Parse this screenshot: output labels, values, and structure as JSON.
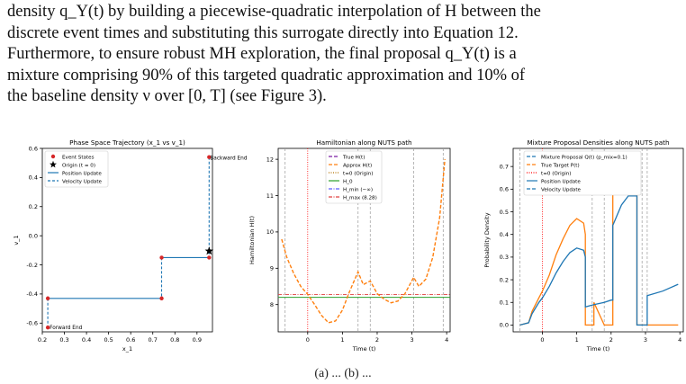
{
  "paragraph": {
    "lines": [
      "density q_Y(t) by building a piecewise-quadratic interpolation of H between the",
      "discrete event times and substituting this surrogate directly into Equation 12.",
      "Furthermore, to ensure robust MH exploration, the final proposal q_Y(t) is a",
      "mixture comprising 90% of this targeted quadratic approximation and 10% of",
      "the baseline density ν over [0, T] (see Figure 3)."
    ]
  },
  "figure_caption": "(a) ... (b) ...",
  "chart_data": [
    {
      "type": "line",
      "title": "Phase Space Trajectory (x_1 vs v_1)",
      "xlabel": "x_1",
      "ylabel": "v_1",
      "xlim": [
        0.2,
        0.97
      ],
      "ylim": [
        -0.66,
        0.6
      ],
      "xticks": [
        "0.2",
        "0.3",
        "0.4",
        "0.5",
        "0.6",
        "0.7",
        "0.8",
        "0.9"
      ],
      "yticks": [
        "-0.6",
        "-0.4",
        "-0.2",
        "0.0",
        "0.2",
        "0.4",
        "0.6"
      ],
      "legend": [
        "Event States",
        "Origin (t = 0)",
        "Position Update",
        "Velocity Update"
      ],
      "legend_position": "top-left",
      "annotations": [
        "Backward End",
        "Forward End"
      ],
      "event_states": [
        [
          0.955,
          0.54
        ],
        [
          0.955,
          -0.15
        ],
        [
          0.74,
          -0.15
        ],
        [
          0.74,
          -0.43
        ],
        [
          0.225,
          -0.43
        ],
        [
          0.225,
          -0.63
        ]
      ],
      "origin": [
        0.955,
        -0.105
      ],
      "position_updates": [
        [
          [
            0.74,
            -0.15
          ],
          [
            0.955,
            -0.15
          ]
        ],
        [
          [
            0.225,
            -0.43
          ],
          [
            0.74,
            -0.43
          ]
        ]
      ],
      "velocity_updates": [
        [
          [
            0.955,
            0.54
          ],
          [
            0.955,
            -0.15
          ]
        ],
        [
          [
            0.74,
            -0.15
          ],
          [
            0.74,
            -0.43
          ]
        ],
        [
          [
            0.225,
            -0.43
          ],
          [
            0.225,
            -0.63
          ]
        ]
      ],
      "colors": {
        "events": "#d62728",
        "position": "#1f77b4",
        "velocity": "#1f77b4",
        "origin": "#000000"
      }
    },
    {
      "type": "line",
      "title": "Hamiltonian along NUTS path",
      "xlabel": "Time (t)",
      "ylabel": "Hamiltonian H(t)",
      "xlim": [
        -0.85,
        4.1
      ],
      "ylim": [
        7.25,
        12.3
      ],
      "xticks": [
        "0",
        "1",
        "2",
        "3",
        "4"
      ],
      "yticks": [
        "8",
        "9",
        "10",
        "11",
        "12"
      ],
      "legend": [
        "True H(t)",
        "Approx H(t)",
        "t=0 (Origin)",
        "H_0",
        "H_min (−∞)",
        "H_max (8.28)"
      ],
      "legend_position": "top-center",
      "event_times": [
        -0.65,
        1.45,
        1.8,
        3.05,
        3.9
      ],
      "series": [
        {
          "name": "Approx H(t)",
          "x": [
            -0.75,
            -0.6,
            -0.4,
            -0.2,
            0.0,
            0.2,
            0.4,
            0.6,
            0.8,
            1.0,
            1.2,
            1.45,
            1.6,
            1.8,
            2.0,
            2.2,
            2.4,
            2.6,
            2.8,
            3.05,
            3.2,
            3.4,
            3.6,
            3.8,
            3.95
          ],
          "values": [
            9.8,
            9.3,
            8.85,
            8.5,
            8.28,
            8.0,
            7.7,
            7.5,
            7.55,
            7.85,
            8.35,
            8.9,
            8.55,
            8.65,
            8.3,
            8.15,
            8.05,
            8.1,
            8.3,
            8.75,
            8.5,
            8.7,
            9.3,
            10.4,
            12.0
          ]
        }
      ],
      "h0": 8.2,
      "h_max": 8.28,
      "colors": {
        "true": "#7b1fa2",
        "approx": "#ff7f0e",
        "origin": "#ff0000",
        "h0": "#2ca02c",
        "hmin": "#5c5cff",
        "hmax": "#e04040",
        "events": "#999999"
      }
    },
    {
      "type": "line",
      "title": "Mixture Proposal Densities along NUTS path",
      "xlabel": "Time (t)",
      "ylabel": "Probability Density",
      "xlim": [
        -0.85,
        4.1
      ],
      "ylim": [
        -0.03,
        0.78
      ],
      "xticks": [
        "0",
        "1",
        "2",
        "3",
        "4"
      ],
      "yticks": [
        "0.0",
        "0.1",
        "0.2",
        "0.3",
        "0.4",
        "0.5",
        "0.6",
        "0.7"
      ],
      "legend": [
        "Mixture Proposal Q(t) (p_mix=0.1)",
        "True Target P(t)",
        "t=0 (Origin)",
        "Position Update",
        "Velocity Update"
      ],
      "legend_position": "top-center",
      "event_times": [
        -0.65,
        1.45,
        1.8,
        2.9,
        3.05
      ],
      "series": [
        {
          "name": "True Target P(t)",
          "x": [
            -0.65,
            -0.4,
            -0.3,
            -0.1,
            0.0,
            0.2,
            0.4,
            0.6,
            0.8,
            1.0,
            1.2,
            1.25,
            1.25,
            1.5,
            1.5,
            1.8,
            1.8,
            2.05,
            2.05,
            2.2,
            2.5,
            2.75,
            2.75,
            2.9,
            3.05,
            3.05,
            3.5,
            3.95
          ],
          "values": [
            0.0,
            0.01,
            0.06,
            0.12,
            0.15,
            0.22,
            0.31,
            0.38,
            0.44,
            0.47,
            0.45,
            0.4,
            0.0,
            0.0,
            0.1,
            0.0,
            0.0,
            0.0,
            0.6,
            0.75,
            0.75,
            0.7,
            0.0,
            0.0,
            0.0,
            0.0,
            0.0,
            0.0
          ]
        },
        {
          "name": "Mixture Proposal Q(t) (p_mix=0.1)",
          "x": [
            -0.65,
            -0.4,
            -0.3,
            -0.1,
            0.0,
            0.2,
            0.4,
            0.6,
            0.8,
            1.0,
            1.2,
            1.25,
            1.25,
            1.5,
            1.8,
            2.0,
            2.05,
            2.05,
            2.3,
            2.5,
            2.75,
            2.75,
            3.05,
            3.05,
            3.5,
            3.95
          ],
          "values": [
            0.0,
            0.01,
            0.05,
            0.1,
            0.12,
            0.17,
            0.23,
            0.28,
            0.32,
            0.34,
            0.33,
            0.3,
            0.08,
            0.09,
            0.1,
            0.11,
            0.11,
            0.44,
            0.53,
            0.57,
            0.57,
            0.0,
            0.0,
            0.13,
            0.15,
            0.18
          ]
        }
      ],
      "colors": {
        "target": "#ff7f0e",
        "mixture": "#1f77b4",
        "origin": "#ff0000",
        "events": "#999999"
      }
    }
  ]
}
